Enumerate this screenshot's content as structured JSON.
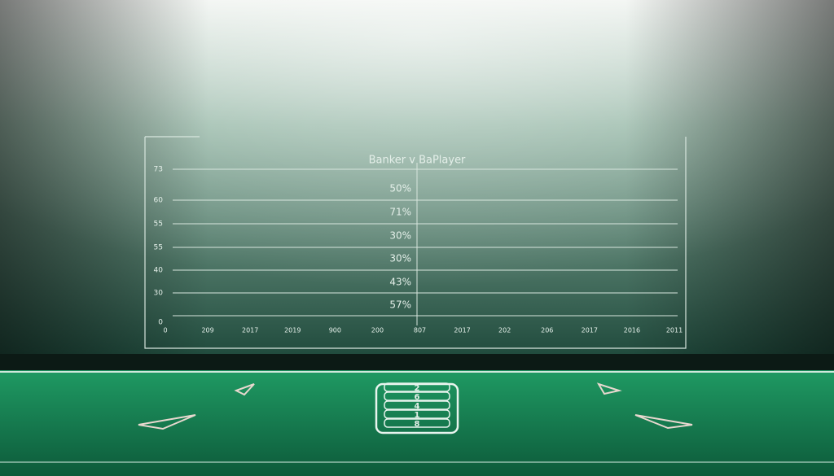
{
  "panel": {
    "title": "Banker v BaPlayer",
    "y_labels": [
      "73",
      "60",
      "55",
      "55",
      "40",
      "30",
      "0"
    ],
    "row_labels": [
      "50%",
      "71%",
      "30%",
      "30%",
      "43%",
      "57%"
    ],
    "x_labels": [
      "0",
      "209",
      "2017",
      "2019",
      "900",
      "200",
      "807",
      "2017",
      "202",
      "206",
      "2017",
      "2016",
      "2011"
    ]
  },
  "table": {
    "shoe_numbers": [
      "2",
      "6",
      "4",
      "1",
      "8"
    ]
  }
}
